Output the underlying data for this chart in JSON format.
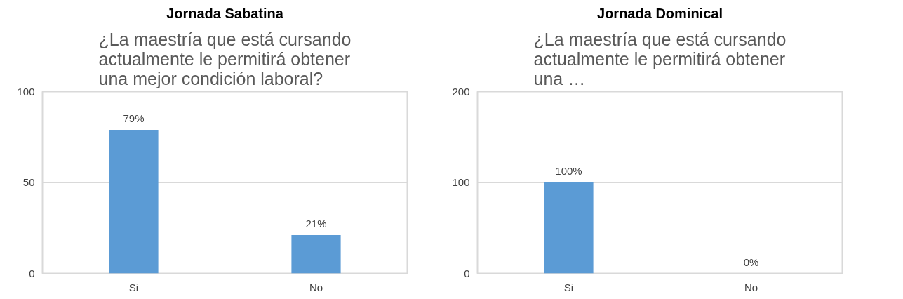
{
  "chart_data": [
    {
      "type": "bar",
      "title": "Jornada Sabatina",
      "subtitle": "¿La maestría que está cursando actualmente le permitirá obtener una mejor condición laboral?",
      "categories": [
        "Si",
        "No"
      ],
      "values": [
        79,
        21
      ],
      "value_labels": [
        "79%",
        "21%"
      ],
      "color": "#5b9bd5",
      "ylim": [
        0,
        100
      ],
      "yticks": [
        0,
        50,
        100
      ],
      "grid": "y"
    },
    {
      "type": "bar",
      "title": "Jornada Dominical",
      "subtitle": "¿La maestría que está cursando actualmente le permitirá obtener una …",
      "categories": [
        "Si",
        "No"
      ],
      "values": [
        100,
        0
      ],
      "value_labels": [
        "100%",
        "0%"
      ],
      "color": "#5b9bd5",
      "ylim": [
        0,
        200
      ],
      "yticks": [
        0,
        100,
        200
      ],
      "grid": "y"
    }
  ]
}
